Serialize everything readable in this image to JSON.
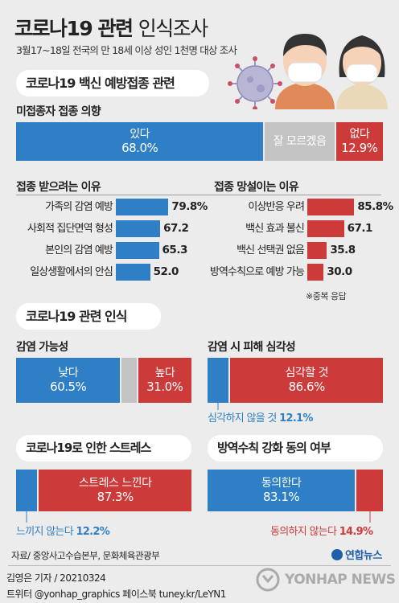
{
  "header": {
    "title_bold": "코로나19 관련",
    "title_light": "인식조사",
    "subtitle": "3월17~18일 전국의 만 18세 이상 성인 1천명 대상 조사"
  },
  "sections": {
    "vaccine": "코로나19 백신 예방접종 관련",
    "perception": "코로나19 관련 인식"
  },
  "chart_data": [
    {
      "type": "bar",
      "title": "미접종자 접종 의향",
      "stacked": true,
      "series": [
        {
          "name": "있다",
          "value": 68.0,
          "label": "68.0%",
          "color": "#2f7fc6"
        },
        {
          "name": "잘 모르겠음",
          "value": 19.1,
          "label": "",
          "color": "#c3c3c3"
        },
        {
          "name": "없다",
          "value": 12.9,
          "label": "12.9%",
          "color": "#cc3a3a"
        }
      ]
    },
    {
      "type": "bar",
      "title": "접종 받으려는 이유",
      "categories": [
        "가족의 감염 예방",
        "사회적 집단면역 형성",
        "본인의 감염 예방",
        "일상생활에서의 안심"
      ],
      "values": [
        79.8,
        67.2,
        65.3,
        52.0
      ],
      "value_labels": [
        "79.8%",
        "67.2",
        "65.3",
        "52.0"
      ],
      "color": "#2f7fc6",
      "xlim": [
        0,
        100
      ]
    },
    {
      "type": "bar",
      "title": "접종 망설이는 이유",
      "categories": [
        "이상반응 우려",
        "백신 효과 불신",
        "백신 선택권 없음",
        "방역수칙으로 예방 가능"
      ],
      "values": [
        85.8,
        67.1,
        35.8,
        30.0
      ],
      "value_labels": [
        "85.8%",
        "67.1",
        "35.8",
        "30.0"
      ],
      "color": "#cc3a3a",
      "xlim": [
        0,
        100
      ]
    },
    {
      "type": "bar",
      "title": "감염 가능성",
      "stacked": true,
      "series": [
        {
          "name": "낮다",
          "value": 60.5,
          "label": "60.5%",
          "color": "#2f7fc6"
        },
        {
          "name": "",
          "value": 8.5,
          "label": "",
          "color": "#c3c3c3"
        },
        {
          "name": "높다",
          "value": 31.0,
          "label": "31.0%",
          "color": "#cc3a3a"
        }
      ]
    },
    {
      "type": "bar",
      "title": "감염 시 피해 심각성",
      "stacked": true,
      "series": [
        {
          "name": "심각하지 않을 것",
          "value": 12.1,
          "label": "12.1%",
          "color": "#2f7fc6"
        },
        {
          "name": "심각할 것",
          "value": 86.6,
          "label": "86.6%",
          "color": "#cc3a3a"
        }
      ]
    },
    {
      "type": "bar",
      "title": "코로나19로 인한 스트레스",
      "stacked": true,
      "series": [
        {
          "name": "느끼지 않는다",
          "value": 12.2,
          "label": "12.2%",
          "color": "#2f7fc6"
        },
        {
          "name": "스트레스 느낀다",
          "value": 87.3,
          "label": "87.3%",
          "color": "#cc3a3a"
        }
      ]
    },
    {
      "type": "bar",
      "title": "방역수칙 강화 동의 여부",
      "stacked": true,
      "series": [
        {
          "name": "동의한다",
          "value": 83.1,
          "label": "83.1%",
          "color": "#2f7fc6"
        },
        {
          "name": "동의하지 않는다",
          "value": 14.9,
          "label": "14.9%",
          "color": "#cc3a3a"
        }
      ]
    }
  ],
  "note": "※중복 응답",
  "footer": {
    "source": "자료/ 중앙사고수습본부, 문화체육관광부",
    "logo": "연합뉴스",
    "author": "김영은 기자 / 20210324",
    "social": "트위터 @yonhap_graphics  페이스북 tuney.kr/LeYN1",
    "watermark": "YONHAP NEWS"
  }
}
